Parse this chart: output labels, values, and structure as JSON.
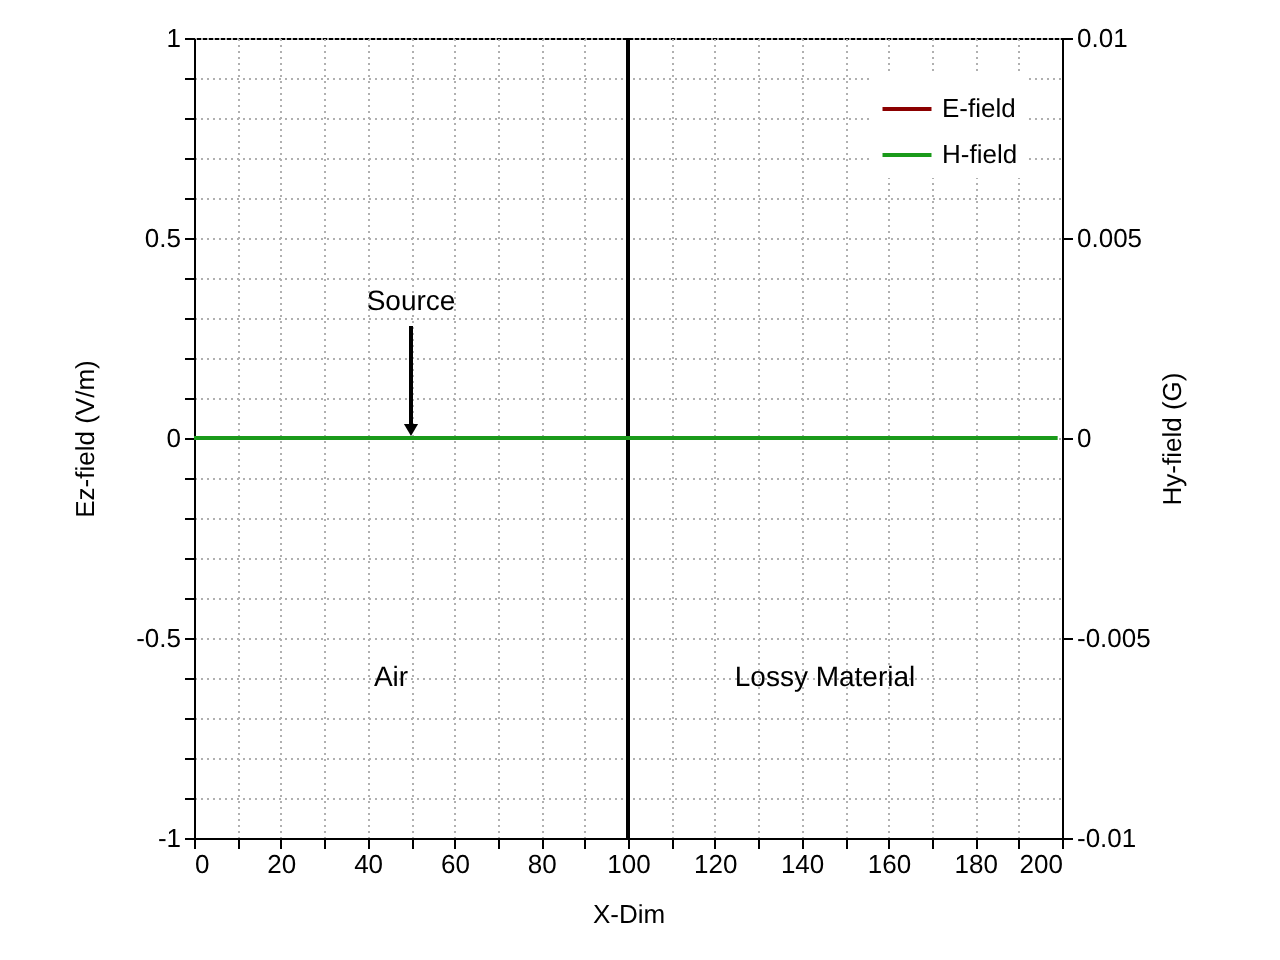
{
  "chart_data": {
    "type": "line",
    "xlabel": "X-Dim",
    "ylabel": "Ez-field (V/m)",
    "y2label": "Hy-field (G)",
    "xlim": [
      0,
      200
    ],
    "xticks": [
      0,
      {
        "value": 10,
        "label": null
      },
      20,
      {
        "value": 30,
        "label": null
      },
      40,
      {
        "value": 50,
        "label": null
      },
      60,
      {
        "value": 70,
        "label": null
      },
      80,
      {
        "value": 90,
        "label": null
      },
      100,
      {
        "value": 110,
        "label": null
      },
      120,
      {
        "value": 130,
        "label": null
      },
      140,
      {
        "value": 150,
        "label": null
      },
      160,
      {
        "value": 170,
        "label": null
      },
      180,
      {
        "value": 190,
        "label": null
      },
      200
    ],
    "ylim": [
      -1,
      1
    ],
    "yticks": [
      -1,
      {
        "value": -0.9,
        "label": null
      },
      {
        "value": -0.8,
        "label": null
      },
      {
        "value": -0.7,
        "label": null
      },
      {
        "value": -0.6,
        "label": null
      },
      -0.5,
      {
        "value": -0.4,
        "label": null
      },
      {
        "value": -0.3,
        "label": null
      },
      {
        "value": -0.2,
        "label": null
      },
      {
        "value": -0.1,
        "label": null
      },
      0,
      {
        "value": 0.1,
        "label": null
      },
      {
        "value": 0.2,
        "label": null
      },
      {
        "value": 0.3,
        "label": null
      },
      {
        "value": 0.4,
        "label": null
      },
      0.5,
      {
        "value": 0.6,
        "label": null
      },
      {
        "value": 0.7,
        "label": null
      },
      {
        "value": 0.8,
        "label": null
      },
      {
        "value": 0.9,
        "label": null
      },
      1
    ],
    "y2lim": [
      -0.01,
      0.01
    ],
    "y2ticks": [
      -0.01,
      -0.005,
      0,
      0.005,
      0.01
    ],
    "grid": true,
    "legend": "top right",
    "series": [
      {
        "name": "E-field",
        "color": "#8b0000"
      },
      {
        "name": "H-field",
        "color": "#1a9a1a",
        "x": [
          0,
          199
        ],
        "values": [
          0,
          0
        ],
        "axis": "y2"
      }
    ],
    "ref_lines": [
      {
        "axis": "x",
        "value": 100,
        "color": "#000000"
      }
    ],
    "annotations": [
      {
        "text": "Source",
        "x": 50,
        "y": 0
      },
      "Air",
      "Lossy Material"
    ]
  }
}
